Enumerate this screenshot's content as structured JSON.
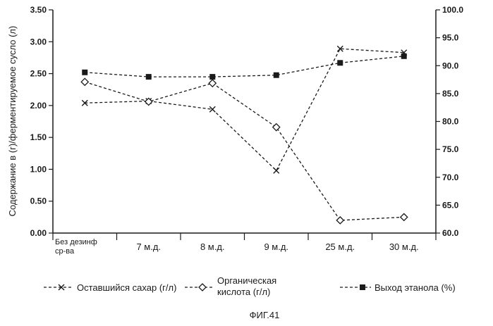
{
  "chart_data": {
    "type": "line",
    "categories": [
      "Без дезинф ср-ва",
      "7 м.д.",
      "8 м.д.",
      "9 м.д.",
      "25 м.д.",
      "30 м.д."
    ],
    "ylabel": "Содержание в (г)/ферментируемое сусло (л)",
    "ylim": [
      0,
      3.5
    ],
    "yticks": [
      "0.00",
      "0.50",
      "1.00",
      "1.50",
      "2.00",
      "2.50",
      "3.00",
      "3.50"
    ],
    "y2lim": [
      60,
      100
    ],
    "y2ticks": [
      "60.0",
      "65.0",
      "70.0",
      "75.0",
      "80.0",
      "85.0",
      "90.0",
      "95.0",
      "100.0"
    ],
    "grid": false,
    "legend_position": "bottom",
    "series": [
      {
        "name": "Оставшийся сахар (г/л)",
        "axis": "left",
        "marker": "x",
        "values": [
          2.04,
          2.07,
          1.94,
          0.98,
          2.89,
          2.83
        ]
      },
      {
        "name": "Органическая кислота (г/л)",
        "name_lines": [
          "Органическая",
          "кислота (г/л)"
        ],
        "axis": "left",
        "marker": "diamond",
        "values": [
          2.37,
          2.06,
          2.35,
          1.66,
          0.2,
          0.25
        ]
      },
      {
        "name": "Выход этанола (%)",
        "axis": "right",
        "marker": "square",
        "values": [
          88.8,
          88.0,
          88.0,
          88.3,
          90.5,
          91.7
        ]
      }
    ],
    "caption": "ФИГ.41"
  }
}
